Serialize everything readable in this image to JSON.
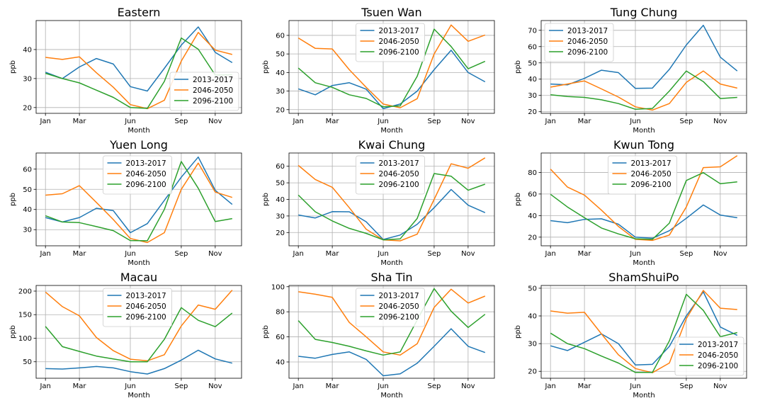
{
  "chart_data": {
    "type": "line",
    "legend_labels": [
      "2013-2017",
      "2046-2050",
      "2096-2100"
    ],
    "colors": [
      "#1f77b4",
      "#ff7f0e",
      "#2ca02c"
    ],
    "xlabel": "Month",
    "ylabel": "ppb",
    "x": [
      1,
      2,
      3,
      4,
      5,
      6,
      7,
      8,
      9,
      10,
      11,
      12
    ],
    "xticks": [
      1,
      3,
      6,
      9,
      11
    ],
    "xtick_labels": [
      "Jan",
      "Mar",
      "Jun",
      "Sep",
      "Nov"
    ],
    "grid": true,
    "charts": [
      {
        "title": "Eastern",
        "ylim": [
          18,
          50
        ],
        "yticks": [
          20,
          30,
          40
        ],
        "legend": "lower-right",
        "series": [
          {
            "name": "2013-2017",
            "values": [
              32.2,
              30.0,
              34.0,
              36.9,
              35.0,
              27.2,
              25.7,
              33.5,
              41.5,
              47.8,
              39.0,
              35.5
            ]
          },
          {
            "name": "2046-2050",
            "values": [
              37.3,
              36.6,
              37.5,
              32.0,
              27.0,
              21.0,
              19.6,
              22.5,
              36.0,
              45.9,
              39.8,
              38.3
            ]
          },
          {
            "name": "2096-2100",
            "values": [
              31.8,
              30.0,
              28.5,
              26.0,
              23.5,
              20.0,
              19.7,
              29.0,
              44.0,
              40.1,
              31.2,
              31.3
            ]
          }
        ]
      },
      {
        "title": "Tsuen Wan",
        "ylim": [
          18,
          68
        ],
        "yticks": [
          20,
          30,
          40,
          50,
          60
        ],
        "legend": "upper-center",
        "series": [
          {
            "name": "2013-2017",
            "values": [
              31.2,
              28.0,
              33.0,
              34.5,
              31.0,
              20.5,
              23.0,
              30.0,
              41.5,
              52.0,
              40.0,
              35.0
            ]
          },
          {
            "name": "2046-2050",
            "values": [
              58.6,
              53.0,
              52.7,
              41.5,
              32.0,
              23.0,
              21.0,
              25.9,
              50.0,
              65.6,
              56.8,
              60.2
            ]
          },
          {
            "name": "2096-2100",
            "values": [
              42.4,
              34.5,
              32.0,
              28.0,
              26.0,
              21.5,
              22.0,
              38.0,
              63.4,
              54.0,
              42.0,
              46.0
            ]
          }
        ]
      },
      {
        "title": "Tung Chung",
        "ylim": [
          19,
          76
        ],
        "yticks": [
          20,
          30,
          40,
          50,
          60,
          70
        ],
        "legend": "upper-left",
        "series": [
          {
            "name": "2013-2017",
            "values": [
              37.0,
              36.5,
              40.5,
              45.5,
              44.0,
              34.3,
              34.5,
              46.0,
              61.0,
              73.1,
              53.5,
              45.0
            ]
          },
          {
            "name": "2046-2050",
            "values": [
              35.1,
              37.0,
              38.9,
              34.0,
              29.0,
              23.0,
              21.0,
              25.0,
              38.0,
              45.0,
              37.0,
              34.5
            ]
          },
          {
            "name": "2096-2100",
            "values": [
              30.4,
              29.3,
              28.8,
              27.3,
              25.0,
              21.5,
              22.0,
              32.7,
              45.0,
              38.5,
              28.1,
              28.8
            ]
          }
        ]
      },
      {
        "title": "Yuen Long",
        "ylim": [
          22,
          68
        ],
        "yticks": [
          30,
          40,
          50,
          60
        ],
        "legend": "upper-center",
        "series": [
          {
            "name": "2013-2017",
            "values": [
              36.0,
              33.8,
              36.0,
              40.6,
              39.4,
              28.5,
              33.0,
              44.5,
              56.0,
              66.0,
              49.5,
              42.5
            ]
          },
          {
            "name": "2046-2050",
            "values": [
              47.1,
              47.8,
              51.8,
              43.5,
              35.0,
              25.6,
              23.6,
              28.5,
              50.0,
              63.0,
              48.6,
              46.0
            ]
          },
          {
            "name": "2096-2100",
            "values": [
              36.9,
              33.8,
              33.5,
              31.5,
              29.5,
              24.6,
              24.5,
              40.0,
              63.8,
              50.5,
              34.0,
              35.5
            ]
          }
        ]
      },
      {
        "title": "Kwai Chung",
        "ylim": [
          12,
          68
        ],
        "yticks": [
          20,
          30,
          40,
          50,
          60
        ],
        "legend": "upper-center",
        "series": [
          {
            "name": "2013-2017",
            "values": [
              30.6,
              28.8,
              32.6,
              32.5,
              26.5,
              15.8,
              18.5,
              25.0,
              35.0,
              46.0,
              36.5,
              32.0
            ]
          },
          {
            "name": "2046-2050",
            "values": [
              60.5,
              52.0,
              47.3,
              35.0,
              22.0,
              15.6,
              15.0,
              19.0,
              40.0,
              61.5,
              58.8,
              65.1
            ]
          },
          {
            "name": "2096-2100",
            "values": [
              42.6,
              32.5,
              27.0,
              22.5,
              19.5,
              15.6,
              16.2,
              28.5,
              55.6,
              54.0,
              45.5,
              49.2
            ]
          }
        ]
      },
      {
        "title": "Kwun Tong",
        "ylim": [
          12,
          98
        ],
        "yticks": [
          20,
          40,
          60,
          80
        ],
        "legend": "upper-center",
        "series": [
          {
            "name": "2013-2017",
            "values": [
              35.3,
              33.4,
              36.5,
              37.0,
              32.0,
              20.0,
              19.0,
              26.0,
              37.5,
              49.8,
              40.5,
              38.0
            ]
          },
          {
            "name": "2046-2050",
            "values": [
              83.0,
              66.4,
              59.0,
              45.0,
              30.0,
              18.0,
              17.0,
              22.0,
              48.0,
              84.5,
              85.2,
              95.6
            ]
          },
          {
            "name": "2096-2100",
            "values": [
              59.7,
              48.0,
              38.0,
              28.5,
              23.0,
              18.5,
              18.0,
              33.0,
              72.5,
              79.8,
              69.5,
              71.3
            ]
          }
        ]
      },
      {
        "title": "Macau",
        "ylim": [
          15,
          212
        ],
        "yticks": [
          50,
          100,
          150,
          200
        ],
        "legend": "upper-center",
        "series": [
          {
            "name": "2013-2017",
            "values": [
              35.5,
              34.6,
              37.0,
              40.0,
              37.0,
              29.0,
              24.0,
              35.5,
              53.5,
              74.5,
              56.0,
              47.0
            ]
          },
          {
            "name": "2046-2050",
            "values": [
              198.0,
              167.0,
              147.5,
              101.5,
              73.5,
              55.5,
              52.0,
              65.0,
              126.0,
              170.5,
              161.5,
              202.0
            ]
          },
          {
            "name": "2096-2100",
            "values": [
              125.0,
              82.0,
              72.0,
              62.0,
              56.0,
              50.0,
              50.0,
              97.5,
              165.0,
              138.0,
              124.5,
              153.5
            ]
          }
        ]
      },
      {
        "title": "Sha Tin",
        "ylim": [
          27,
          101
        ],
        "yticks": [
          40,
          60,
          80,
          100
        ],
        "legend": "upper-center",
        "series": [
          {
            "name": "2013-2017",
            "values": [
              44.5,
              43.0,
              46.0,
              48.0,
              42.0,
              29.0,
              30.5,
              39.0,
              52.5,
              66.5,
              52.5,
              47.5
            ]
          },
          {
            "name": "2046-2050",
            "values": [
              96.0,
              94.0,
              91.5,
              71.5,
              60.0,
              48.0,
              45.5,
              54.5,
              83.5,
              98.0,
              87.0,
              92.5
            ]
          },
          {
            "name": "2096-2100",
            "values": [
              73.0,
              58.0,
              55.5,
              52.5,
              48.8,
              45.5,
              48.0,
              73.5,
              98.5,
              80.5,
              67.5,
              78.0
            ]
          }
        ]
      },
      {
        "title": "ShamShuiPo",
        "ylim": [
          17.5,
          51
        ],
        "yticks": [
          20,
          30,
          40,
          50
        ],
        "legend": "lower-right",
        "series": [
          {
            "name": "2013-2017",
            "values": [
              29.2,
              27.5,
              30.5,
              33.5,
              30.0,
              22.3,
              22.5,
              29.0,
              40.0,
              48.7,
              36.0,
              33.0
            ]
          },
          {
            "name": "2046-2050",
            "values": [
              41.8,
              41.0,
              41.3,
              33.5,
              26.0,
              21.0,
              19.5,
              23.0,
              39.0,
              49.2,
              42.8,
              42.3
            ]
          },
          {
            "name": "2096-2100",
            "values": [
              33.8,
              30.0,
              28.2,
              25.5,
              23.0,
              19.6,
              19.6,
              31.0,
              47.8,
              42.0,
              32.5,
              34.0
            ]
          }
        ]
      }
    ]
  }
}
